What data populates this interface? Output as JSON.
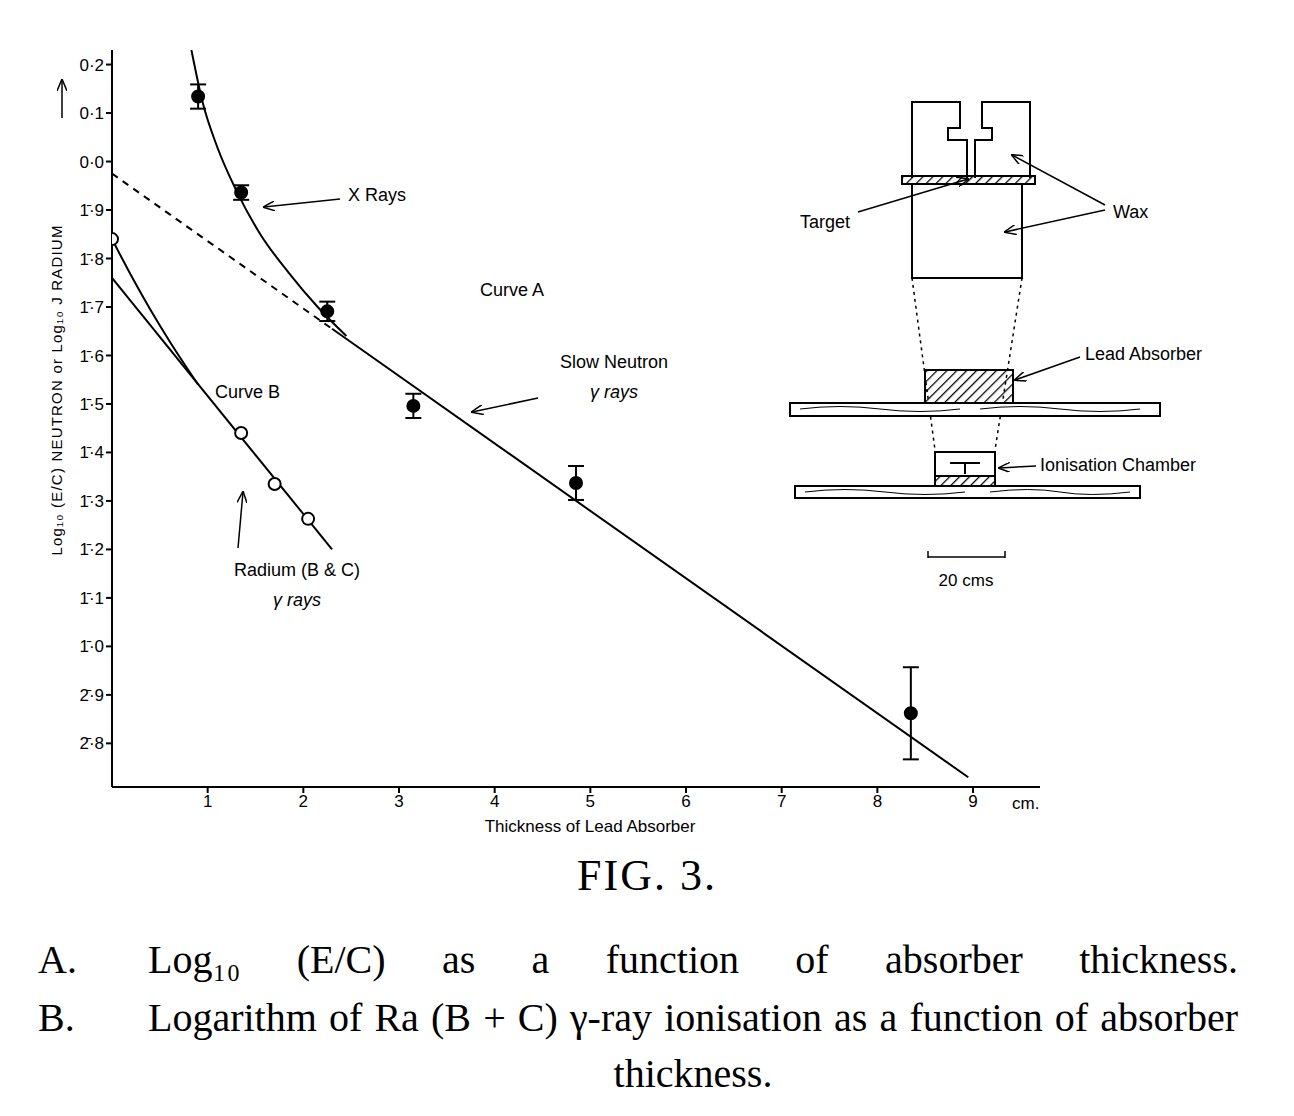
{
  "chart_data": {
    "type": "line",
    "color": "#000000",
    "grid": false,
    "x_label": "Thickness of Lead Absorber",
    "x_unit_label": "cm.",
    "y_label": "Log₁₀ (E/C) NEUTRON or Log₁₀ J RADIUM",
    "xlim": [
      0,
      9.7
    ],
    "xticks": [
      1,
      2,
      3,
      4,
      5,
      6,
      7,
      8,
      9
    ],
    "ylim": [
      -1.29,
      0.23
    ],
    "yticks": [
      {
        "value": 0.2,
        "label": "0·2"
      },
      {
        "value": 0.1,
        "label": "0·1"
      },
      {
        "value": 0,
        "label": "0·0"
      },
      {
        "value": -0.1,
        "label": "1̄·9"
      },
      {
        "value": -0.2,
        "label": "1̄·8"
      },
      {
        "value": -0.3,
        "label": "1̄·7"
      },
      {
        "value": -0.4,
        "label": "1̄·6"
      },
      {
        "value": -0.5,
        "label": "1̄·5"
      },
      {
        "value": -0.6,
        "label": "1̄·4"
      },
      {
        "value": -0.7,
        "label": "1̄·3"
      },
      {
        "value": -0.8,
        "label": "1̄·2"
      },
      {
        "value": -0.9,
        "label": "1̄·1"
      },
      {
        "value": -1.0,
        "label": "1̄·0"
      },
      {
        "value": -1.1,
        "label": "2̄·9"
      },
      {
        "value": -1.2,
        "label": "2̄·8"
      }
    ],
    "series": [
      {
        "name": "X Rays",
        "type": "line",
        "line_style": "solid",
        "x": [
          0.83,
          0.95,
          1.1,
          1.3,
          1.55,
          1.85,
          2.15,
          2.45
        ],
        "values": [
          0.23,
          0.12,
          0.03,
          -0.06,
          -0.15,
          -0.23,
          -0.3,
          -0.36
        ]
      },
      {
        "name": "Slow Neutron γ rays",
        "type": "line",
        "line_style": "solid",
        "x": [
          2.3,
          8.95
        ],
        "values": [
          -0.345,
          -1.27
        ]
      },
      {
        "type": "line",
        "line_style": "dashed",
        "x": [
          0,
          2.3
        ],
        "values": [
          -0.025,
          -0.345
        ]
      },
      {
        "name": "Curve A",
        "type": "scatter",
        "marker": "filled_circle",
        "x": [
          0.9,
          1.35,
          2.25,
          3.15,
          4.85,
          8.35
        ],
        "values": [
          0.134,
          -0.064,
          -0.309,
          -0.504,
          -0.663,
          -1.138
        ],
        "errors": [
          0.025,
          0.015,
          0.02,
          0.025,
          0.035,
          0.095
        ]
      },
      {
        "name": "Radium (B & C) γ rays",
        "type": "line",
        "line_style": "solid",
        "x": [
          0,
          2.3
        ],
        "values": [
          -0.24,
          -0.8
        ]
      },
      {
        "type": "line",
        "line_style": "solid",
        "x": [
          0,
          0.2,
          0.4,
          0.6,
          0.9
        ],
        "values": [
          -0.16,
          -0.235,
          -0.305,
          -0.37,
          -0.46
        ]
      },
      {
        "name": "Curve B",
        "type": "scatter",
        "marker": "open_circle",
        "x": [
          0,
          1.35,
          1.7,
          2.05
        ],
        "values": [
          -0.16,
          -0.56,
          -0.665,
          -0.737
        ]
      }
    ]
  },
  "diagram": {
    "target": "Target",
    "wax": "Wax",
    "absorber": "Lead Absorber",
    "chamber": "Ionisation Chamber",
    "scale_bar": "20 cms"
  },
  "caption": {
    "figure": "FIG. 3.",
    "lines": [
      {
        "key": "A.",
        "text": "Log₁₀ (E/C) as a function of absorber thickness."
      },
      {
        "key": "B.",
        "text": "Logarithm of Ra (B + C) γ-ray ionisation as a function of absorber thickness."
      }
    ]
  }
}
